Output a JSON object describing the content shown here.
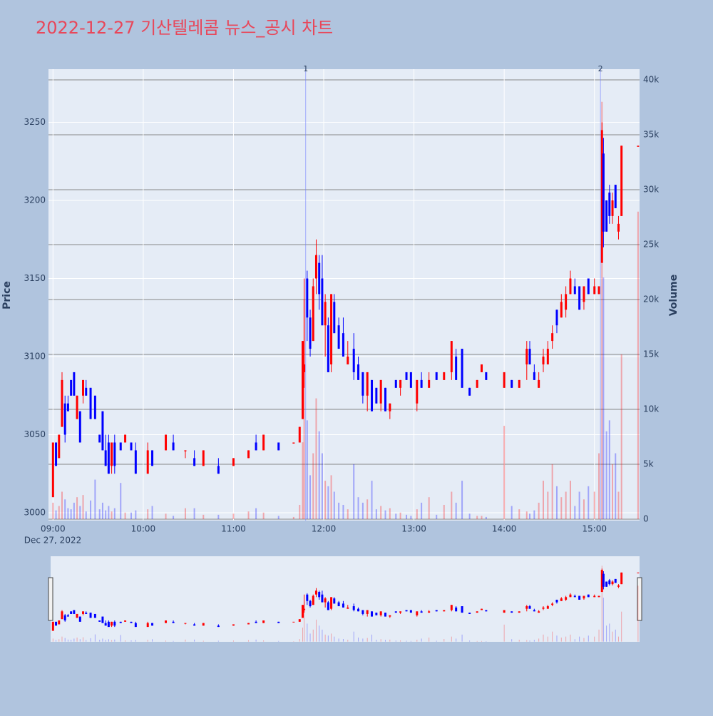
{
  "chart_data": {
    "type": "candlestick",
    "title": "2022-12-27 기산텔레콤 뉴스_공시 차트",
    "y_label": "Price",
    "y2_label": "Volume",
    "x_date": "Dec 27, 2022",
    "increasing_color": "#ff0000",
    "decreasing_color": "#0000ff",
    "x": [
      "2022-12-27 09:00",
      "2022-12-27 09:02",
      "2022-12-27 09:04",
      "2022-12-27 09:06",
      "2022-12-27 09:08",
      "2022-12-27 09:10",
      "2022-12-27 09:12",
      "2022-12-27 09:14",
      "2022-12-27 09:16",
      "2022-12-27 09:18",
      "2022-12-27 09:20",
      "2022-12-27 09:22",
      "2022-12-27 09:25",
      "2022-12-27 09:28",
      "2022-12-27 09:31",
      "2022-12-27 09:33",
      "2022-12-27 09:35",
      "2022-12-27 09:37",
      "2022-12-27 09:39",
      "2022-12-27 09:41",
      "2022-12-27 09:45",
      "2022-12-27 09:48",
      "2022-12-27 09:52",
      "2022-12-27 09:55",
      "2022-12-27 10:03",
      "2022-12-27 10:06",
      "2022-12-27 10:15",
      "2022-12-27 10:20",
      "2022-12-27 10:28",
      "2022-12-27 10:34",
      "2022-12-27 10:40",
      "2022-12-27 10:50",
      "2022-12-27 11:00",
      "2022-12-27 11:10",
      "2022-12-27 11:15",
      "2022-12-27 11:20",
      "2022-12-27 11:30",
      "2022-12-27 11:40",
      "2022-12-27 11:44",
      "2022-12-27 11:46",
      "2022-12-27 11:47",
      "2022-12-27 11:49",
      "2022-12-27 11:51",
      "2022-12-27 11:53",
      "2022-12-27 11:55",
      "2022-12-27 11:57",
      "2022-12-27 11:59",
      "2022-12-27 12:01",
      "2022-12-27 12:03",
      "2022-12-27 12:05",
      "2022-12-27 12:07",
      "2022-12-27 12:10",
      "2022-12-27 12:13",
      "2022-12-27 12:16",
      "2022-12-27 12:20",
      "2022-12-27 12:23",
      "2022-12-27 12:26",
      "2022-12-27 12:29",
      "2022-12-27 12:32",
      "2022-12-27 12:35",
      "2022-12-27 12:38",
      "2022-12-27 12:41",
      "2022-12-27 12:44",
      "2022-12-27 12:48",
      "2022-12-27 12:51",
      "2022-12-27 12:55",
      "2022-12-27 12:58",
      "2022-12-27 13:02",
      "2022-12-27 13:05",
      "2022-12-27 13:10",
      "2022-12-27 13:15",
      "2022-12-27 13:20",
      "2022-12-27 13:25",
      "2022-12-27 13:28",
      "2022-12-27 13:32",
      "2022-12-27 13:37",
      "2022-12-27 13:42",
      "2022-12-27 13:45",
      "2022-12-27 13:48",
      "2022-12-27 14:00",
      "2022-12-27 14:05",
      "2022-12-27 14:10",
      "2022-12-27 14:15",
      "2022-12-27 14:17",
      "2022-12-27 14:20",
      "2022-12-27 14:23",
      "2022-12-27 14:26",
      "2022-12-27 14:29",
      "2022-12-27 14:32",
      "2022-12-27 14:35",
      "2022-12-27 14:38",
      "2022-12-27 14:41",
      "2022-12-27 14:44",
      "2022-12-27 14:47",
      "2022-12-27 14:50",
      "2022-12-27 14:53",
      "2022-12-27 14:56",
      "2022-12-27 15:00",
      "2022-12-27 15:03",
      "2022-12-27 15:05",
      "2022-12-27 15:06",
      "2022-12-27 15:08",
      "2022-12-27 15:10",
      "2022-12-27 15:12",
      "2022-12-27 15:14",
      "2022-12-27 15:16",
      "2022-12-27 15:18",
      "2022-12-27 15:29"
    ],
    "open": [
      3010,
      3045,
      3035,
      3055,
      3070,
      3070,
      3085,
      3090,
      3060,
      3065,
      3075,
      3080,
      3080,
      3075,
      3050,
      3065,
      3040,
      3045,
      3030,
      3045,
      3045,
      3045,
      3045,
      3040,
      3025,
      3040,
      3040,
      3045,
      3040,
      3035,
      3030,
      3030,
      3030,
      3035,
      3045,
      3040,
      3045,
      3045,
      3045,
      3060,
      3090,
      3150,
      3125,
      3110,
      3150,
      3160,
      3150,
      3120,
      3120,
      3095,
      3135,
      3120,
      3115,
      3095,
      3105,
      3095,
      3090,
      3075,
      3085,
      3080,
      3070,
      3080,
      3065,
      3085,
      3080,
      3090,
      3090,
      3070,
      3085,
      3080,
      3090,
      3085,
      3090,
      3100,
      3105,
      3080,
      3080,
      3090,
      3090,
      3080,
      3085,
      3080,
      3095,
      3105,
      3090,
      3080,
      3095,
      3095,
      3110,
      3130,
      3125,
      3130,
      3140,
      3145,
      3145,
      3135,
      3150,
      3140,
      3140,
      3160,
      3230,
      3200,
      3205,
      3190,
      3210,
      3180,
      3190,
      3235
    ],
    "high": [
      3045,
      3045,
      3050,
      3090,
      3075,
      3075,
      3085,
      3090,
      3075,
      3065,
      3085,
      3085,
      3080,
      3075,
      3050,
      3065,
      3050,
      3050,
      3045,
      3050,
      3045,
      3050,
      3045,
      3045,
      3045,
      3040,
      3050,
      3050,
      3040,
      3040,
      3040,
      3035,
      3035,
      3040,
      3050,
      3050,
      3045,
      3045,
      3055,
      3110,
      3150,
      3155,
      3130,
      3150,
      3175,
      3165,
      3165,
      3140,
      3125,
      3140,
      3140,
      3125,
      3125,
      3110,
      3115,
      3100,
      3090,
      3090,
      3085,
      3080,
      3085,
      3080,
      3070,
      3085,
      3085,
      3090,
      3090,
      3085,
      3090,
      3090,
      3090,
      3090,
      3110,
      3105,
      3105,
      3080,
      3085,
      3095,
      3090,
      3090,
      3085,
      3085,
      3110,
      3110,
      3095,
      3090,
      3105,
      3110,
      3120,
      3130,
      3140,
      3145,
      3155,
      3150,
      3145,
      3145,
      3150,
      3150,
      3145,
      3250,
      3240,
      3200,
      3210,
      3205,
      3210,
      3190,
      3235,
      3235
    ],
    "low": [
      3010,
      3030,
      3035,
      3055,
      3045,
      3065,
      3075,
      3075,
      3060,
      3045,
      3070,
      3075,
      3060,
      3060,
      3045,
      3040,
      3030,
      3025,
      3025,
      3025,
      3040,
      3045,
      3040,
      3025,
      3025,
      3030,
      3040,
      3040,
      3035,
      3030,
      3030,
      3025,
      3030,
      3035,
      3040,
      3040,
      3040,
      3045,
      3045,
      3060,
      3080,
      3110,
      3100,
      3110,
      3140,
      3130,
      3120,
      3100,
      3090,
      3090,
      3115,
      3105,
      3100,
      3095,
      3085,
      3085,
      3070,
      3065,
      3065,
      3070,
      3065,
      3065,
      3060,
      3080,
      3075,
      3085,
      3080,
      3065,
      3080,
      3080,
      3085,
      3085,
      3085,
      3085,
      3080,
      3075,
      3080,
      3090,
      3085,
      3080,
      3080,
      3080,
      3085,
      3095,
      3085,
      3080,
      3090,
      3095,
      3105,
      3115,
      3125,
      3125,
      3140,
      3140,
      3130,
      3130,
      3140,
      3140,
      3140,
      3160,
      3170,
      3180,
      3185,
      3185,
      3195,
      3175,
      3190,
      3235
    ],
    "close": [
      3045,
      3030,
      3050,
      3085,
      3050,
      3065,
      3075,
      3075,
      3075,
      3045,
      3085,
      3075,
      3060,
      3060,
      3045,
      3040,
      3030,
      3025,
      3045,
      3030,
      3040,
      3050,
      3040,
      3025,
      3040,
      3030,
      3050,
      3040,
      3040,
      3030,
      3040,
      3025,
      3035,
      3040,
      3040,
      3050,
      3040,
      3045,
      3055,
      3110,
      3095,
      3125,
      3105,
      3145,
      3165,
      3140,
      3120,
      3135,
      3090,
      3140,
      3115,
      3105,
      3100,
      3100,
      3090,
      3085,
      3075,
      3090,
      3065,
      3070,
      3085,
      3065,
      3070,
      3080,
      3085,
      3085,
      3080,
      3085,
      3080,
      3085,
      3085,
      3090,
      3110,
      3085,
      3080,
      3075,
      3085,
      3095,
      3085,
      3090,
      3080,
      3085,
      3105,
      3095,
      3085,
      3085,
      3100,
      3105,
      3115,
      3120,
      3135,
      3140,
      3150,
      3140,
      3130,
      3145,
      3140,
      3145,
      3145,
      3245,
      3180,
      3180,
      3190,
      3200,
      3195,
      3185,
      3235,
      3235
    ],
    "volume": [
      1500,
      800,
      1200,
      2500,
      1800,
      1000,
      900,
      1500,
      2000,
      1200,
      2200,
      700,
      1700,
      3600,
      900,
      1500,
      800,
      1200,
      700,
      1000,
      3300,
      600,
      600,
      800,
      900,
      1200,
      500,
      300,
      1000,
      1000,
      400,
      400,
      500,
      700,
      1000,
      600,
      300,
      200,
      1300,
      7000,
      20000,
      9000,
      4000,
      6000,
      11000,
      8000,
      6000,
      3500,
      3000,
      4000,
      2500,
      1500,
      1300,
      900,
      5000,
      2000,
      1500,
      1800,
      3500,
      900,
      1200,
      800,
      1000,
      500,
      600,
      400,
      300,
      900,
      1500,
      2000,
      400,
      1300,
      2500,
      1500,
      3500,
      500,
      300,
      300,
      200,
      8500,
      1200,
      900,
      700,
      500,
      800,
      1500,
      3500,
      2500,
      5000,
      3000,
      2000,
      2500,
      3500,
      1200,
      2500,
      1800,
      3000,
      2500,
      6000,
      38000,
      22000,
      8000,
      9000,
      5000,
      6000,
      2500,
      15000,
      28000
    ],
    "annotations": [
      {
        "x": "2022-12-27 11:48",
        "label": "1"
      },
      {
        "x": "2022-12-27 15:04",
        "label": "2"
      }
    ],
    "xlim": [
      "2022-12-27 08:57",
      "2022-12-27 15:30"
    ],
    "xticks": [
      {
        "value": "2022-12-27 09:00",
        "label": "09:00"
      },
      {
        "value": "2022-12-27 10:00",
        "label": "10:00"
      },
      {
        "value": "2022-12-27 11:00",
        "label": "11:00"
      },
      {
        "value": "2022-12-27 12:00",
        "label": "12:00"
      },
      {
        "value": "2022-12-27 13:00",
        "label": "13:00"
      },
      {
        "value": "2022-12-27 14:00",
        "label": "14:00"
      },
      {
        "value": "2022-12-27 15:00",
        "label": "15:00"
      }
    ],
    "ylim": [
      2995,
      3284
    ],
    "yticks": [
      3000,
      3050,
      3100,
      3150,
      3200,
      3250
    ],
    "y2lim": [
      -130,
      40970
    ],
    "y2ticks": [
      0,
      {
        "value": 5000,
        "label": "5k"
      },
      {
        "value": 10000,
        "label": "10k"
      },
      {
        "value": 15000,
        "label": "15k"
      },
      {
        "value": 20000,
        "label": "20k"
      },
      {
        "value": 25000,
        "label": "25k"
      },
      {
        "value": 30000,
        "label": "30k"
      },
      {
        "value": 35000,
        "label": "35k"
      },
      {
        "value": 40000,
        "label": "40k"
      }
    ],
    "grid": true
  }
}
